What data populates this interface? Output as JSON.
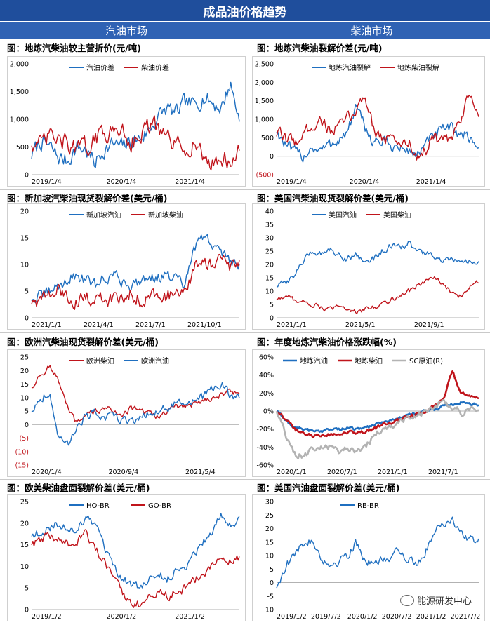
{
  "header": {
    "title": "成品油价格趋势"
  },
  "columns": {
    "left": "汽油市场",
    "right": "柴油市场"
  },
  "watermark": "能源研发中心",
  "colors": {
    "blue": "#1f6fc0",
    "red": "#c0141b",
    "gray": "#b3b3b3",
    "banner": "#1f4e9c",
    "colhdr": "#2f62b4"
  },
  "charts": [
    {
      "id": "c1",
      "title": "图：地炼汽柴油较主营折价(元/吨)",
      "chart_data": {
        "type": "line",
        "ylim": [
          0,
          2000
        ],
        "yticks": [
          "0",
          "500",
          "1,000",
          "1,500",
          "2,000"
        ],
        "ytick_values": [
          0,
          500,
          1000,
          1500,
          2000
        ],
        "xticks": [
          "2019/1/4",
          "2020/1/4",
          "2021/1/4"
        ],
        "xtick_pos": [
          0,
          0.36,
          0.69
        ],
        "series": [
          {
            "name": "汽油价差",
            "color": "#1f6fc0",
            "noise": 130,
            "y": [
              350,
              600,
              500,
              300,
              250,
              500,
              450,
              200,
              450,
              550,
              500,
              600,
              650,
              800,
              1050,
              1200,
              1100,
              1300,
              1250,
              1400,
              1300,
              1200,
              1650,
              1000
            ]
          },
          {
            "name": "柴油价差",
            "color": "#c0141b",
            "noise": 150,
            "y": [
              600,
              500,
              700,
              600,
              550,
              450,
              500,
              600,
              800,
              750,
              850,
              600,
              700,
              900,
              800,
              650,
              500,
              450,
              600,
              300,
              200,
              300,
              250,
              400
            ]
          }
        ]
      }
    },
    {
      "id": "c2",
      "title": "图：地炼汽柴油裂解价差(元/吨)",
      "chart_data": {
        "type": "line",
        "ylim": [
          -500,
          2500
        ],
        "yticks": [
          "(500)",
          "0",
          "500",
          "1,000",
          "1,500",
          "2,000",
          "2,500"
        ],
        "ytick_values": [
          -500,
          0,
          500,
          1000,
          1500,
          2000,
          2500
        ],
        "xticks": [
          "2019/1/4",
          "2020/1/4",
          "2021/1/4"
        ],
        "xtick_pos": [
          0,
          0.36,
          0.69
        ],
        "series": [
          {
            "name": "地炼汽油裂解",
            "color": "#1f6fc0",
            "noise": 140,
            "y": [
              700,
              300,
              100,
              0,
              250,
              150,
              300,
              450,
              600,
              1300,
              800,
              400,
              400,
              300,
              200,
              150,
              50,
              300,
              600,
              700,
              750,
              600,
              500,
              250
            ]
          },
          {
            "name": "地炼柴油裂解",
            "color": "#c0141b",
            "noise": 150,
            "y": [
              600,
              500,
              400,
              550,
              850,
              1000,
              700,
              750,
              1000,
              1200,
              1700,
              800,
              500,
              450,
              350,
              400,
              0,
              200,
              500,
              400,
              500,
              900,
              1800,
              1000
            ]
          }
        ]
      }
    },
    {
      "id": "c3",
      "title": "图：新加坡汽柴油现货裂解价差(美元/桶)",
      "chart_data": {
        "type": "line",
        "ylim": [
          0,
          20
        ],
        "yticks": [
          "0",
          "5",
          "10",
          "15",
          "20"
        ],
        "ytick_values": [
          0,
          5,
          10,
          15,
          20
        ],
        "xticks": [
          "2021/1/1",
          "2021/4/1",
          "2021/7/1",
          "2021/10/1"
        ],
        "xtick_pos": [
          0,
          0.25,
          0.5,
          0.75
        ],
        "series": [
          {
            "name": "新加坡汽油",
            "color": "#1f6fc0",
            "noise": 1.0,
            "y": [
              3.5,
              4,
              5,
              6,
              7,
              8,
              7,
              6,
              7.5,
              8,
              7,
              6,
              7,
              8,
              7.5,
              8,
              7,
              6,
              13,
              15,
              14,
              12,
              11,
              10
            ]
          },
          {
            "name": "新加坡柴油",
            "color": "#c0141b",
            "noise": 1.2,
            "y": [
              3,
              3.5,
              4,
              5,
              4,
              3,
              3.5,
              4,
              3,
              3.5,
              4,
              4.5,
              3.5,
              4,
              5,
              4,
              5,
              4,
              9,
              11,
              10,
              11,
              9,
              10
            ]
          }
        ]
      }
    },
    {
      "id": "c4",
      "title": "图：美国汽柴油现货裂解价差(美元/桶)",
      "chart_data": {
        "type": "line",
        "ylim": [
          0,
          40
        ],
        "yticks": [
          "0",
          "5",
          "10",
          "15",
          "20",
          "25",
          "30",
          "35",
          "40"
        ],
        "ytick_values": [
          0,
          5,
          10,
          15,
          20,
          25,
          30,
          35,
          40
        ],
        "xticks": [
          "2021/1/1",
          "2021/5/1",
          "2021/9/1"
        ],
        "xtick_pos": [
          0,
          0.34,
          0.68
        ],
        "series": [
          {
            "name": "美国汽油",
            "color": "#1f6fc0",
            "noise": 1.0,
            "y": [
              12,
              13,
              16,
              21,
              25,
              24,
              26,
              24,
              22,
              24,
              21,
              22,
              25,
              27,
              26,
              28,
              25,
              24,
              23,
              21,
              22,
              20,
              21,
              20
            ]
          },
          {
            "name": "美国柴油",
            "color": "#c0141b",
            "noise": 0.8,
            "y": [
              7,
              8,
              7,
              6,
              5,
              4,
              3,
              4,
              4,
              2,
              3,
              4,
              5,
              7,
              8,
              10,
              12,
              14,
              15,
              12,
              9,
              8,
              12,
              14
            ]
          }
        ]
      }
    },
    {
      "id": "c5",
      "title": "图：欧洲汽柴油现货裂解价差(美元/桶)",
      "chart_data": {
        "type": "line",
        "ylim": [
          -15,
          25
        ],
        "yticks": [
          "(15)",
          "(10)",
          "(5)",
          "0",
          "5",
          "10",
          "15",
          "20",
          "25"
        ],
        "ytick_values": [
          -15,
          -10,
          -5,
          0,
          5,
          10,
          15,
          20,
          25
        ],
        "xticks": [
          "2020/1/4",
          "2020/9/4",
          "2021/5/4"
        ],
        "xtick_pos": [
          0,
          0.37,
          0.74
        ],
        "series": [
          {
            "name": "欧洲柴油",
            "color": "#c0141b",
            "noise": 1.0,
            "y": [
              14,
              18,
              22,
              16,
              6,
              0,
              3,
              5,
              6,
              5,
              4,
              6,
              5,
              4,
              3,
              5,
              7,
              6,
              8,
              9,
              10,
              11,
              12,
              12
            ]
          },
          {
            "name": "欧洲汽油",
            "color": "#1f6fc0",
            "noise": 1.4,
            "y": [
              5,
              10,
              12,
              -5,
              -8,
              0,
              3,
              4,
              2,
              3,
              2,
              1,
              3,
              4,
              5,
              6,
              8,
              7,
              9,
              10,
              13,
              15,
              11,
              10
            ]
          }
        ]
      }
    },
    {
      "id": "c6",
      "title": "图：年度地炼汽柴油价格涨跌幅(%)",
      "chart_data": {
        "type": "line",
        "ylim": [
          -60,
          60
        ],
        "yticks": [
          "-60%",
          "-40%",
          "-20%",
          "0%",
          "20%",
          "40%",
          "60%"
        ],
        "ytick_values": [
          -60,
          -40,
          -20,
          0,
          20,
          40,
          60
        ],
        "xticks": [
          "2020/1/1",
          "2020/7/1",
          "2021/1/1",
          "2021/7/1"
        ],
        "xtick_pos": [
          0,
          0.25,
          0.5,
          0.75
        ],
        "series": [
          {
            "name": "地炼汽油",
            "color": "#1f6fc0",
            "width": 2.6,
            "noise": 1.5,
            "y": [
              0,
              -10,
              -18,
              -20,
              -22,
              -22,
              -21,
              -20,
              -19,
              -20,
              -19,
              -16,
              -12,
              -10,
              -8,
              -5,
              -2,
              0,
              2,
              5,
              8,
              10,
              8,
              7
            ]
          },
          {
            "name": "地炼柴油",
            "color": "#c0141b",
            "width": 2.6,
            "noise": 1.8,
            "y": [
              0,
              -8,
              -20,
              -25,
              -28,
              -27,
              -26,
              -25,
              -24,
              -25,
              -24,
              -20,
              -16,
              -12,
              -10,
              -6,
              -3,
              0,
              5,
              15,
              44,
              20,
              15,
              14
            ]
          },
          {
            "name": "SC原油(R)",
            "color": "#b3b3b3",
            "width": 2.6,
            "noise": 3,
            "y": [
              0,
              -25,
              -48,
              -50,
              -44,
              -42,
              -40,
              -45,
              -42,
              -46,
              -42,
              -28,
              -20,
              -18,
              -12,
              -8,
              -4,
              0,
              5,
              10,
              5,
              -2,
              2,
              0
            ]
          }
        ]
      }
    },
    {
      "id": "c7",
      "title": "图：欧美柴油盘面裂解价差(美元/桶)",
      "chart_data": {
        "type": "line",
        "ylim": [
          0,
          25
        ],
        "yticks": [
          "0",
          "5",
          "10",
          "15",
          "20",
          "25"
        ],
        "ytick_values": [
          0,
          5,
          10,
          15,
          20,
          25
        ],
        "xticks": [
          "2019/1/2",
          "2020/1/2",
          "2021/1/2"
        ],
        "xtick_pos": [
          0,
          0.36,
          0.69
        ],
        "series": [
          {
            "name": "HO-BR",
            "color": "#1f6fc0",
            "noise": 0.9,
            "y": [
              17,
              18,
              19,
              20,
              18,
              19,
              21,
              20,
              14,
              10,
              7,
              6,
              5,
              7,
              8,
              7,
              9,
              10,
              13,
              16,
              18,
              22,
              20,
              21
            ]
          },
          {
            "name": "GO-BR",
            "color": "#c0141b",
            "noise": 0.9,
            "y": [
              15,
              16,
              17,
              16,
              15,
              16,
              18,
              14,
              11,
              7,
              4,
              2,
              1,
              3,
              4,
              3,
              4,
              5,
              7,
              8,
              10,
              12,
              11,
              12
            ]
          }
        ]
      }
    },
    {
      "id": "c8",
      "title": "图：美国汽油盘面裂解价差(美元/桶)",
      "chart_data": {
        "type": "line",
        "ylim": [
          -10,
          30
        ],
        "yticks": [
          "-10",
          "-5",
          "0",
          "5",
          "10",
          "15",
          "20",
          "25",
          "30"
        ],
        "ytick_values": [
          -10,
          -5,
          0,
          5,
          10,
          15,
          20,
          25,
          30
        ],
        "xticks": [
          "2019/1/2",
          "2019/7/2",
          "2020/1/2",
          "2020/7/2",
          "2021/1/2",
          "2021/7/2"
        ],
        "xtick_pos": [
          0,
          0.17,
          0.35,
          0.52,
          0.69,
          0.86
        ],
        "series": [
          {
            "name": "RB-BR",
            "color": "#1f6fc0",
            "noise": 1.5,
            "y": [
              -2,
              6,
              10,
              14,
              16,
              10,
              6,
              8,
              10,
              15,
              9,
              6,
              8,
              10,
              12,
              8,
              7,
              12,
              20,
              22,
              24,
              18,
              16,
              15
            ]
          }
        ]
      }
    }
  ]
}
